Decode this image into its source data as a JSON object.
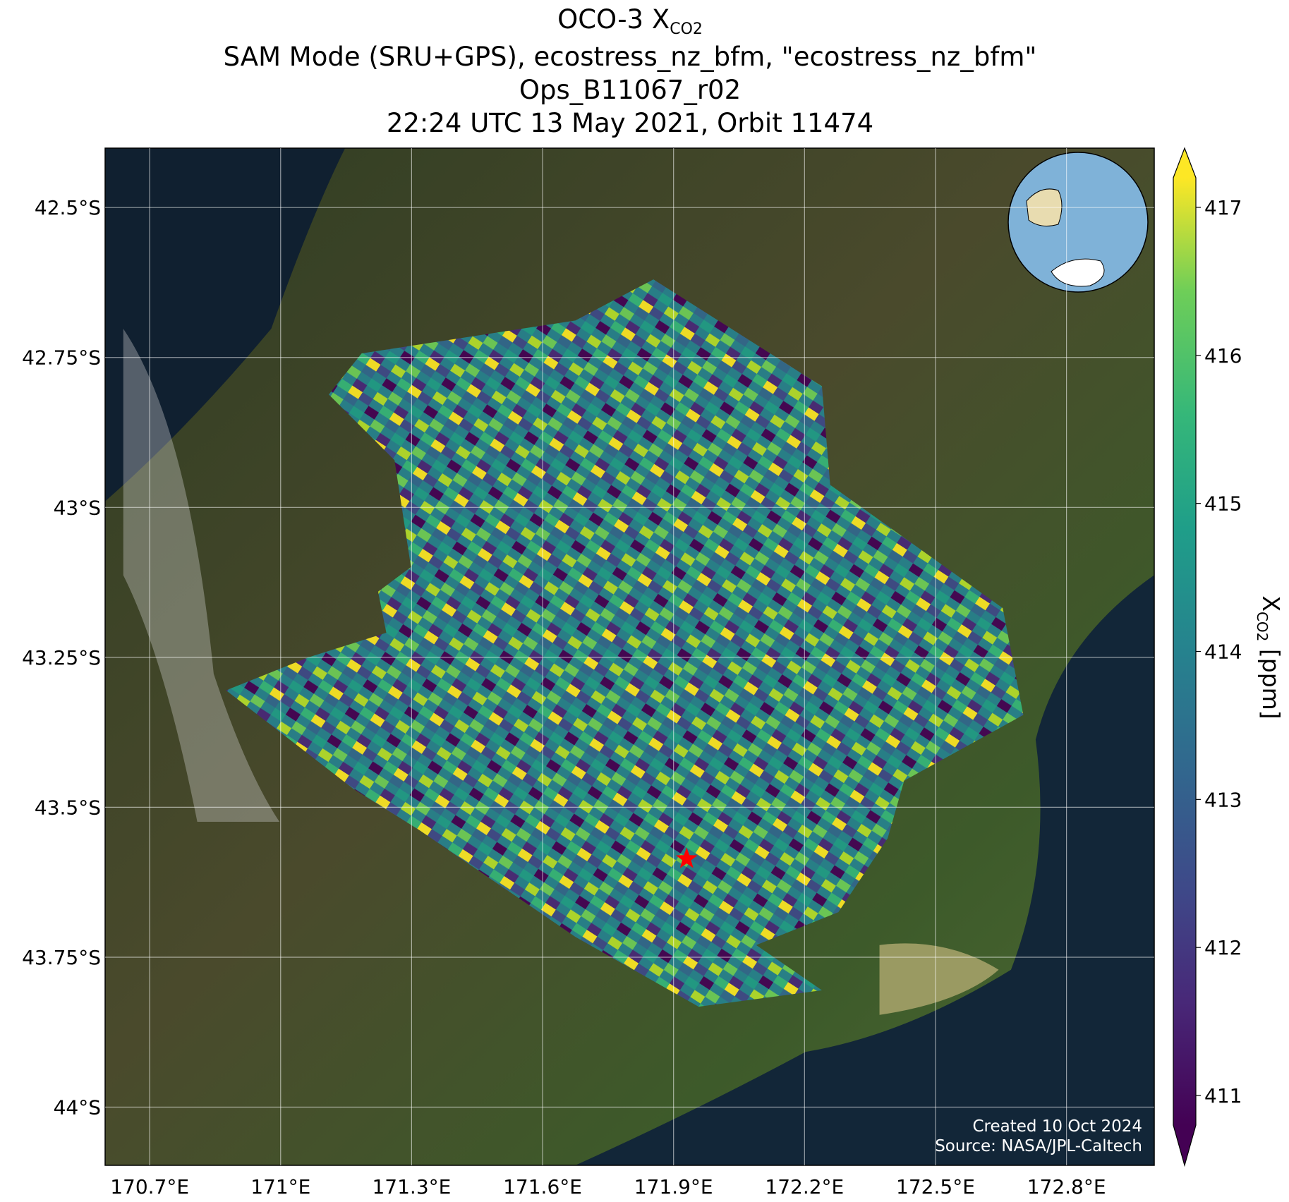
{
  "map": {
    "title": {
      "prefix": "OCO-3 X",
      "subscript": "CO2"
    },
    "subtitle_lines": [
      "SAM Mode (SRU+GPS), ecostress_nz_bfm, \"ecostress_nz_bfm\"",
      "Ops_B11067_r02",
      "22:24 UTC 13 May 2021, Orbit 11474"
    ],
    "extent": {
      "lon": [
        170.598,
        173.001
      ],
      "lat": [
        42.401,
        44.097
      ]
    },
    "grid": true,
    "lat_ticks": [
      {
        "value": 42.5,
        "label": "42.5°S"
      },
      {
        "value": 42.75,
        "label": "42.75°S"
      },
      {
        "value": 43,
        "label": "43°S"
      },
      {
        "value": 43.25,
        "label": "43.25°S"
      },
      {
        "value": 43.5,
        "label": "43.5°S"
      },
      {
        "value": 43.75,
        "label": "43.75°S"
      },
      {
        "value": 44,
        "label": "44°S"
      }
    ],
    "lon_ticks": [
      {
        "value": 170.7,
        "label": "170.7°E"
      },
      {
        "value": 171,
        "label": "171°E"
      },
      {
        "value": 171.3,
        "label": "171.3°E"
      },
      {
        "value": 171.6,
        "label": "171.6°E"
      },
      {
        "value": 171.9,
        "label": "171.9°E"
      },
      {
        "value": 172.2,
        "label": "172.2°E"
      },
      {
        "value": 172.5,
        "label": "172.5°E"
      },
      {
        "value": 172.8,
        "label": "172.8°E"
      }
    ],
    "target": {
      "lon": 171.93,
      "lat": 43.586,
      "color": "#ff0000"
    },
    "colorbar": {
      "label_prefix": "X",
      "label_subscript": "CO2",
      "label_suffix": " [ppm]",
      "colormap": "viridis",
      "extend": "both",
      "range": [
        410.8,
        417.2
      ],
      "ticks": [
        411,
        412,
        413,
        414,
        415,
        416,
        417
      ]
    },
    "credits": [
      "Created 10 Oct 2024",
      "Source: NASA/JPL-Caltech"
    ]
  }
}
